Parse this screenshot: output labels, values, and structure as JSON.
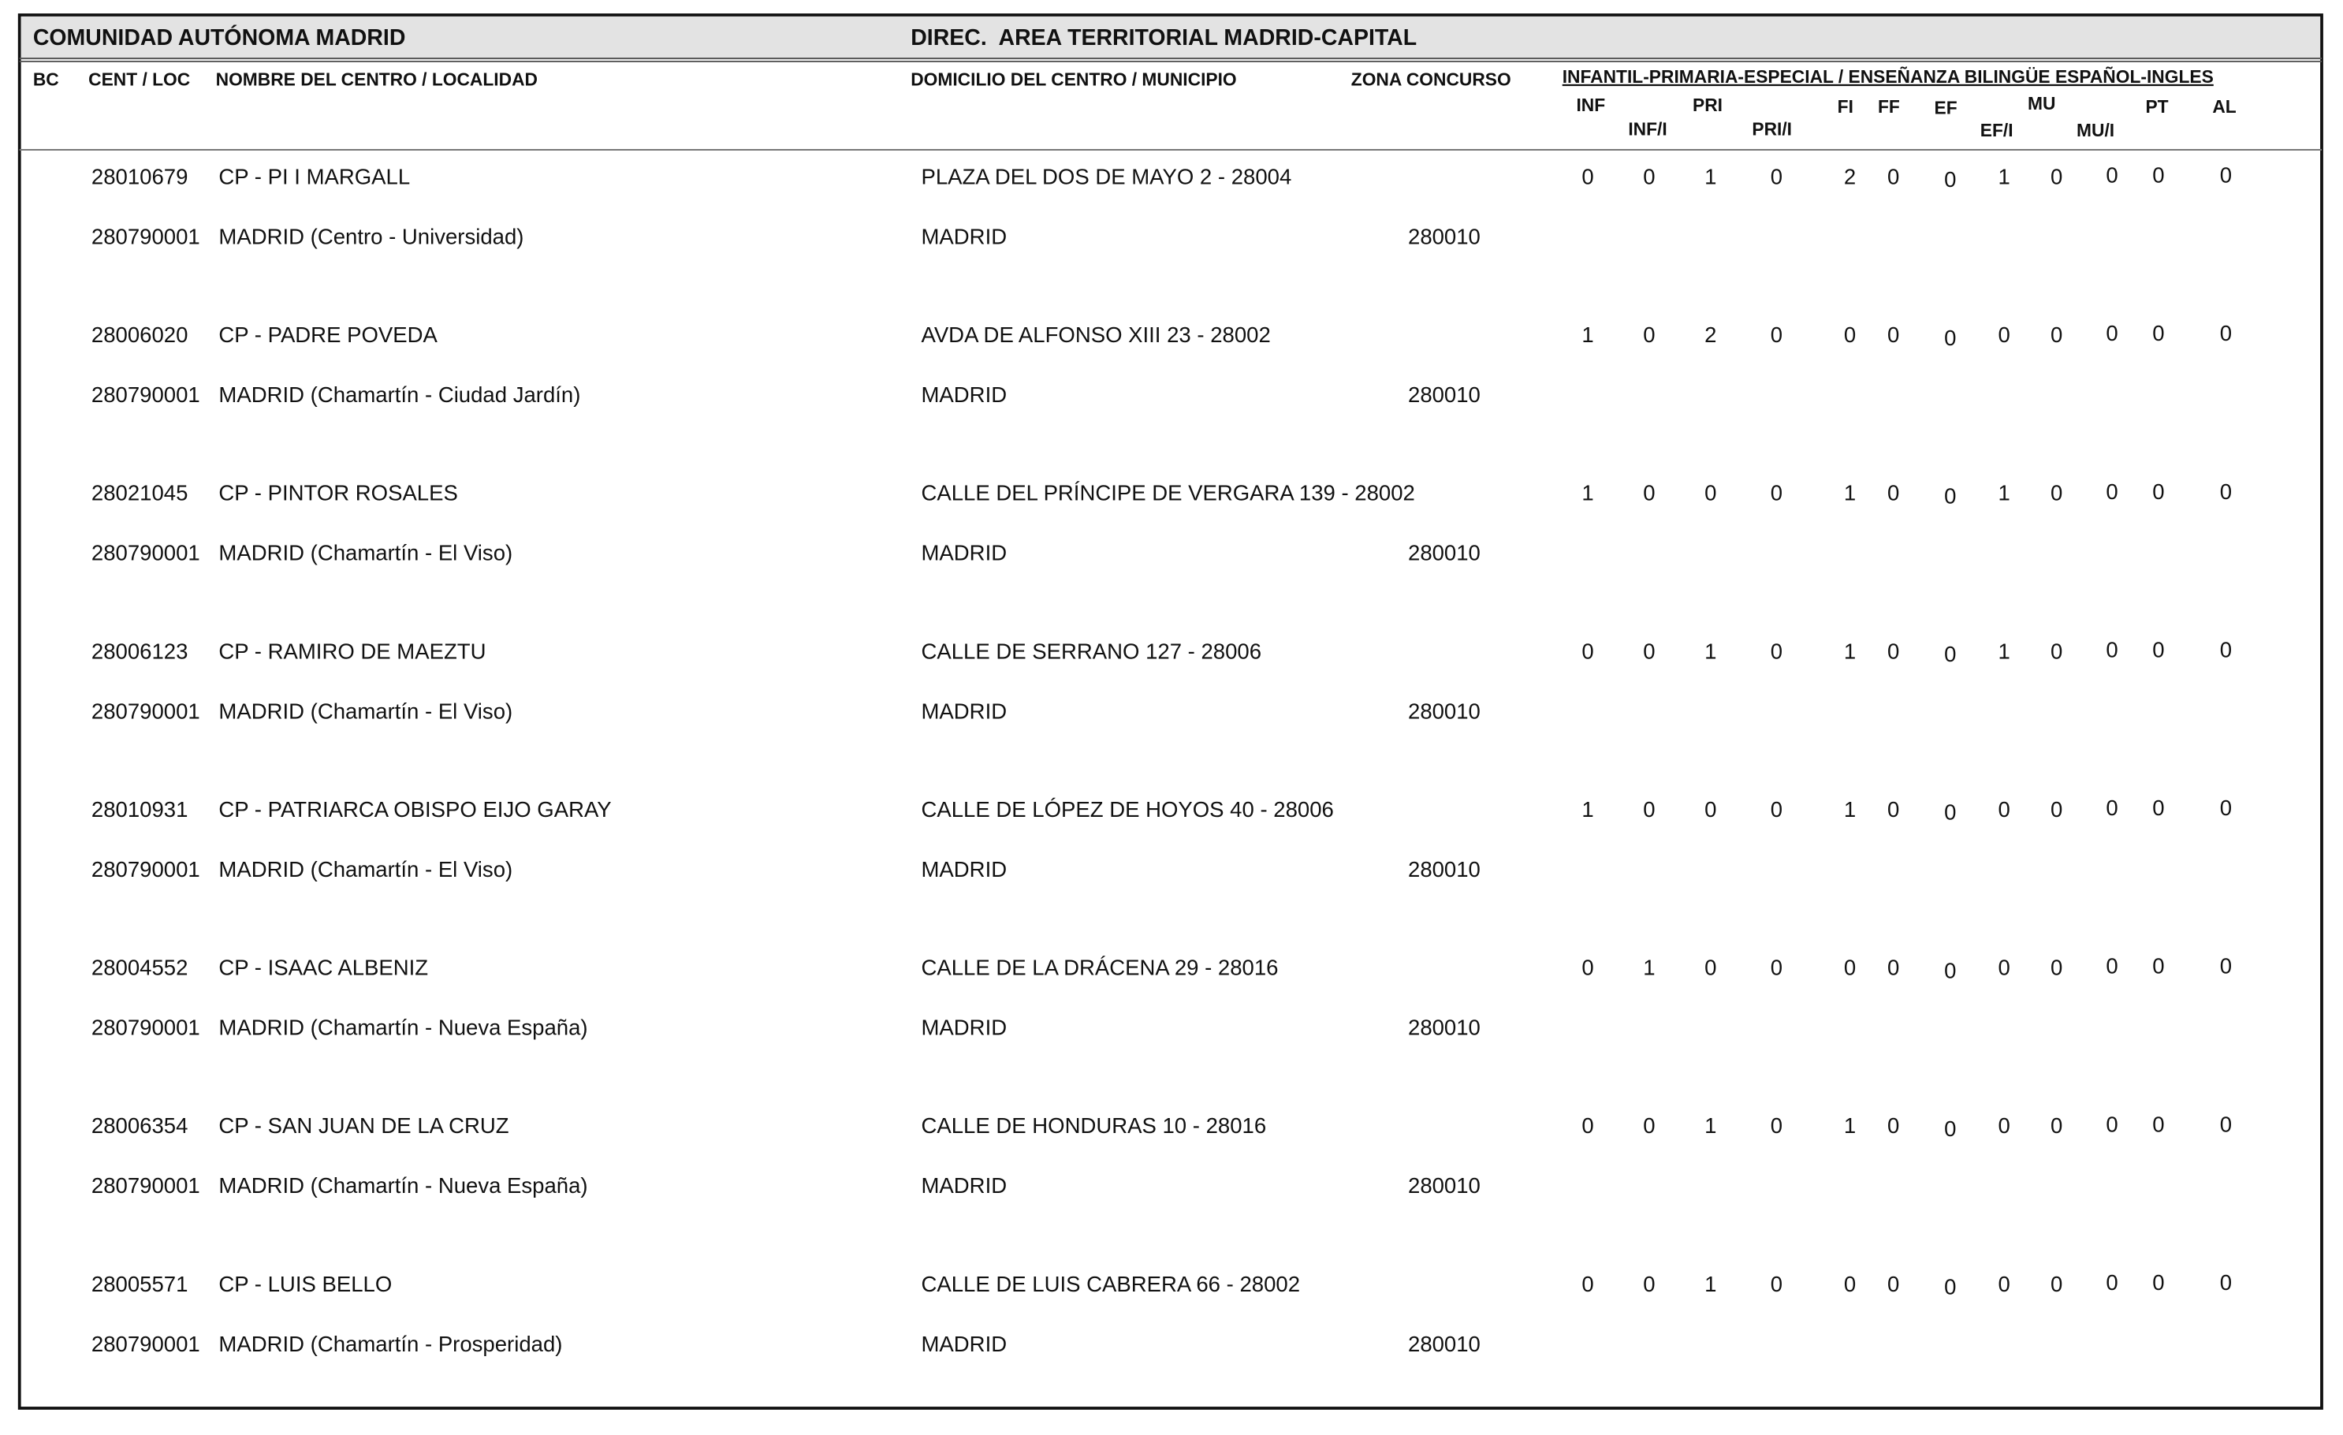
{
  "header": {
    "region": "COMUNIDAD AUTÓNOMA MADRID",
    "direction": "DIREC.  AREA TERRITORIAL MADRID-CAPITAL"
  },
  "columns": {
    "bc": "BC",
    "cent": "CENT / LOC",
    "name": "NOMBRE DEL CENTRO / LOCALIDAD",
    "address": "DOMICILIO DEL CENTRO / MUNICIPIO",
    "zone": "ZONA CONCURSO",
    "group": "INFANTIL-PRIMARIA-ESPECIAL / ENSEÑANZA BILINGÜE ESPAÑOL-INGLES",
    "specialties": [
      "INF",
      "INF/I",
      "PRI",
      "PRI/I",
      "FI",
      "FF",
      "EF",
      "EF/I",
      "MU",
      "MU/I",
      "PT",
      "AL"
    ]
  },
  "rows": [
    {
      "code": "28010679",
      "name": "CP - PI I MARGALL",
      "address": "PLAZA DEL DOS DE MAYO 2 - 28004",
      "values": [
        0,
        0,
        1,
        0,
        2,
        0,
        0,
        1,
        0,
        0,
        0,
        0
      ],
      "loc_code": "280790001",
      "locality": "MADRID (Centro - Universidad)",
      "municipality": "MADRID",
      "zone": "280010"
    },
    {
      "code": "28006020",
      "name": "CP - PADRE POVEDA",
      "address": "AVDA DE ALFONSO XIII 23 - 28002",
      "values": [
        1,
        0,
        2,
        0,
        0,
        0,
        0,
        0,
        0,
        0,
        0,
        0
      ],
      "loc_code": "280790001",
      "locality": "MADRID (Chamartín - Ciudad Jardín)",
      "municipality": "MADRID",
      "zone": "280010"
    },
    {
      "code": "28021045",
      "name": "CP - PINTOR ROSALES",
      "address": "CALLE DEL PRÍNCIPE DE VERGARA 139 - 28002",
      "values": [
        1,
        0,
        0,
        0,
        1,
        0,
        0,
        1,
        0,
        0,
        0,
        0
      ],
      "loc_code": "280790001",
      "locality": "MADRID (Chamartín - El Viso)",
      "municipality": "MADRID",
      "zone": "280010"
    },
    {
      "code": "28006123",
      "name": "CP - RAMIRO DE MAEZTU",
      "address": "CALLE DE SERRANO 127 - 28006",
      "values": [
        0,
        0,
        1,
        0,
        1,
        0,
        0,
        1,
        0,
        0,
        0,
        0
      ],
      "loc_code": "280790001",
      "locality": "MADRID (Chamartín - El Viso)",
      "municipality": "MADRID",
      "zone": "280010"
    },
    {
      "code": "28010931",
      "name": "CP - PATRIARCA OBISPO EIJO GARAY",
      "address": "CALLE DE LÓPEZ DE HOYOS 40 - 28006",
      "values": [
        1,
        0,
        0,
        0,
        1,
        0,
        0,
        0,
        0,
        0,
        0,
        0
      ],
      "loc_code": "280790001",
      "locality": "MADRID (Chamartín - El Viso)",
      "municipality": "MADRID",
      "zone": "280010"
    },
    {
      "code": "28004552",
      "name": "CP - ISAAC ALBENIZ",
      "address": "CALLE DE LA DRÁCENA 29 - 28016",
      "values": [
        0,
        1,
        0,
        0,
        0,
        0,
        0,
        0,
        0,
        0,
        0,
        0
      ],
      "loc_code": "280790001",
      "locality": "MADRID (Chamartín - Nueva España)",
      "municipality": "MADRID",
      "zone": "280010"
    },
    {
      "code": "28006354",
      "name": "CP - SAN JUAN DE LA CRUZ",
      "address": "CALLE DE HONDURAS 10 - 28016",
      "values": [
        0,
        0,
        1,
        0,
        1,
        0,
        0,
        0,
        0,
        0,
        0,
        0
      ],
      "loc_code": "280790001",
      "locality": "MADRID (Chamartín - Nueva España)",
      "municipality": "MADRID",
      "zone": "280010"
    },
    {
      "code": "28005571",
      "name": "CP - LUIS BELLO",
      "address": "CALLE DE LUIS CABRERA 66 - 28002",
      "values": [
        0,
        0,
        1,
        0,
        0,
        0,
        0,
        0,
        0,
        0,
        0,
        0
      ],
      "loc_code": "280790001",
      "locality": "MADRID (Chamartín - Prosperidad)",
      "municipality": "MADRID",
      "zone": "280010"
    }
  ]
}
